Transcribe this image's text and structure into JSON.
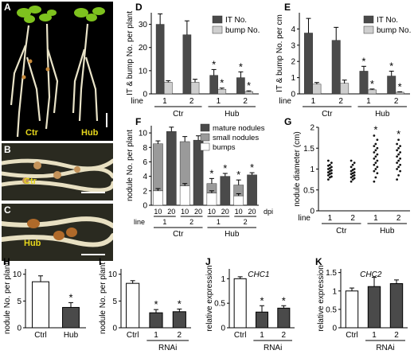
{
  "panels": {
    "A": {
      "letter": "A",
      "ctr_label": "Ctr",
      "hub_label": "Hub"
    },
    "B": {
      "letter": "B",
      "label": "Ctr"
    },
    "C": {
      "letter": "C",
      "label": "Hub"
    }
  },
  "colors": {
    "dark": "#4a4a4a",
    "light": "#cfcfcf",
    "medium": "#9a9a9a",
    "white": "#ffffff",
    "label_yellow": "#e6d61c"
  },
  "chart_data": [
    {
      "panel": "D",
      "type": "bar",
      "ylabel": "IT & bump No. per plant",
      "ylim": [
        0,
        35
      ],
      "yticks": [
        0,
        10,
        20,
        30
      ],
      "categories": [
        "1",
        "2",
        "1",
        "2"
      ],
      "line_label": "line",
      "groups": [
        "Ctr",
        "Hub"
      ],
      "series": [
        {
          "name": "IT No.",
          "values": [
            30,
            25.5,
            8,
            7
          ],
          "errors": [
            4.5,
            6,
            2.5,
            2.5
          ],
          "sig": [
            false,
            false,
            true,
            true
          ]
        },
        {
          "name": "bump No.",
          "values": [
            5,
            5,
            2,
            1
          ],
          "errors": [
            0.7,
            1.3,
            0.5,
            0.3
          ],
          "sig": [
            false,
            false,
            true,
            true
          ]
        }
      ]
    },
    {
      "panel": "E",
      "type": "bar",
      "ylabel": "IT & bump No. per cm",
      "ylim": [
        0,
        5
      ],
      "yticks": [
        0,
        1,
        2,
        3,
        4
      ],
      "categories": [
        "1",
        "2",
        "1",
        "2"
      ],
      "line_label": "line",
      "groups": [
        "Ctr",
        "Hub"
      ],
      "series": [
        {
          "name": "IT No.",
          "values": [
            3.75,
            3.3,
            1.4,
            1.1
          ],
          "errors": [
            0.9,
            0.8,
            0.3,
            0.3
          ],
          "sig": [
            false,
            false,
            true,
            true
          ]
        },
        {
          "name": "bump No.",
          "values": [
            0.6,
            0.65,
            0.25,
            0.1
          ],
          "errors": [
            0.1,
            0.2,
            0.05,
            0.03
          ],
          "sig": [
            false,
            false,
            true,
            true
          ]
        }
      ]
    },
    {
      "panel": "F",
      "type": "bar",
      "ylabel": "nodule No. per plant",
      "ylim": [
        0,
        11
      ],
      "yticks": [
        0,
        2,
        4,
        6,
        8,
        10
      ],
      "dpi_labels": [
        "10",
        "20",
        "10",
        "20",
        "10",
        "20",
        "10",
        "20"
      ],
      "dpi_unit": "dpi",
      "lines": [
        "1",
        "2",
        "1",
        "2"
      ],
      "line_label": "line",
      "groups": [
        "Ctr",
        "Hub"
      ],
      "legend": [
        "mature nodules",
        "small nodules",
        "bumps"
      ],
      "bars": [
        {
          "mature": 0,
          "small": 6.5,
          "bumps": 2,
          "err": 0.4,
          "bump_err": 0.3,
          "sig": false
        },
        {
          "mature": 10.2,
          "small": 0,
          "bumps": 0,
          "err": 0.6,
          "bump_err": 0,
          "sig": false
        },
        {
          "mature": 0,
          "small": 6.1,
          "bumps": 2.7,
          "err": 0.7,
          "bump_err": 0.3,
          "sig": false
        },
        {
          "mature": 9,
          "small": 0,
          "bumps": 0,
          "err": 0.6,
          "bump_err": 0,
          "sig": false
        },
        {
          "mature": 0,
          "small": 1.3,
          "bumps": 1.7,
          "err": 0.7,
          "bump_err": 0.3,
          "sig": true
        },
        {
          "mature": 4,
          "small": 0,
          "bumps": 0,
          "err": 0.4,
          "bump_err": 0,
          "sig": true
        },
        {
          "mature": 0,
          "small": 1.5,
          "bumps": 1.3,
          "err": 0.7,
          "bump_err": 0.3,
          "sig": true
        },
        {
          "mature": 4.2,
          "small": 0,
          "bumps": 0,
          "err": 0.3,
          "bump_err": 0,
          "sig": true
        }
      ]
    },
    {
      "panel": "G",
      "type": "scatter",
      "ylabel": "nodule diameter (cm)",
      "ylim": [
        0,
        2
      ],
      "yticks": [
        0,
        0.5,
        1,
        1.5,
        2
      ],
      "categories": [
        "1",
        "2",
        "1",
        "2"
      ],
      "line_label": "line",
      "groups": [
        "Ctr",
        "Hub"
      ],
      "points": [
        [
          0.75,
          0.8,
          0.82,
          0.85,
          0.88,
          0.9,
          0.92,
          0.95,
          0.97,
          1.0,
          1.02,
          1.05,
          1.08,
          1.1,
          1.15,
          1.2
        ],
        [
          0.7,
          0.75,
          0.78,
          0.8,
          0.83,
          0.85,
          0.88,
          0.9,
          0.92,
          0.95,
          0.98,
          1.0,
          1.05,
          1.1,
          1.15,
          1.2
        ],
        [
          0.7,
          0.8,
          0.9,
          0.95,
          1.0,
          1.05,
          1.1,
          1.15,
          1.2,
          1.25,
          1.3,
          1.35,
          1.4,
          1.45,
          1.5,
          1.55,
          1.6,
          1.7,
          1.8
        ],
        [
          0.75,
          0.85,
          0.95,
          1.0,
          1.05,
          1.1,
          1.15,
          1.2,
          1.25,
          1.3,
          1.35,
          1.4,
          1.45,
          1.5,
          1.55,
          1.6,
          1.7
        ]
      ],
      "sig": [
        false,
        false,
        true,
        true
      ]
    },
    {
      "panel": "H",
      "type": "bar",
      "ylabel": "nodule No. per plant",
      "ylim": [
        0,
        11
      ],
      "yticks": [
        0,
        5,
        10
      ],
      "categories": [
        "Ctrl",
        "Hub"
      ],
      "values": [
        8.6,
        3.8
      ],
      "errors": [
        1.1,
        0.9
      ],
      "fills": [
        "white",
        "dark"
      ],
      "sig": [
        false,
        true
      ]
    },
    {
      "panel": "I",
      "type": "bar",
      "ylabel": "nodule No. per plant",
      "ylim": [
        0,
        11
      ],
      "yticks": [
        0,
        5,
        10
      ],
      "categories": [
        "Ctrl",
        "1",
        "2"
      ],
      "group_label": "RNAi",
      "values": [
        8.3,
        2.8,
        3.0
      ],
      "errors": [
        0.5,
        0.6,
        0.5
      ],
      "fills": [
        "white",
        "dark",
        "dark"
      ],
      "sig": [
        false,
        true,
        true
      ]
    },
    {
      "panel": "J",
      "type": "bar",
      "ylabel": "relative expression",
      "title": "CHC1",
      "ylim": [
        0,
        1.2
      ],
      "yticks": [
        0,
        0.5,
        1
      ],
      "categories": [
        "Ctrl",
        "1",
        "2"
      ],
      "group_label": "RNAi",
      "values": [
        1.0,
        0.32,
        0.4
      ],
      "errors": [
        0.04,
        0.13,
        0.05
      ],
      "fills": [
        "white",
        "dark",
        "dark"
      ],
      "sig": [
        false,
        true,
        true
      ]
    },
    {
      "panel": "K",
      "type": "bar",
      "ylabel": "relative expression",
      "title": "CHC2",
      "ylim": [
        0,
        1.6
      ],
      "yticks": [
        0,
        0.5,
        1,
        1.5
      ],
      "categories": [
        "Ctrl",
        "1",
        "2"
      ],
      "group_label": "RNAi",
      "values": [
        1.0,
        1.12,
        1.2
      ],
      "errors": [
        0.08,
        0.25,
        0.1
      ],
      "fills": [
        "white",
        "dark",
        "dark"
      ],
      "sig": [
        false,
        false,
        false
      ]
    }
  ]
}
